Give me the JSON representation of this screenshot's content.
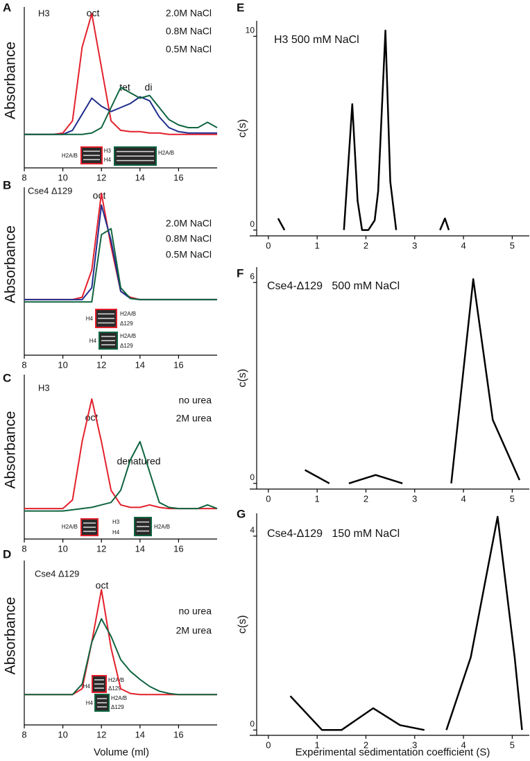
{
  "chart_data": [
    {
      "type": "line",
      "panel": "A",
      "title": "H3",
      "y_label": "Absorbance",
      "annotations": [
        "oct",
        "tet",
        "di"
      ],
      "gel_labels": [
        "H2A/B",
        "H3",
        "H4",
        "H2A/B"
      ],
      "x": [
        8,
        8.5,
        9,
        9.5,
        10,
        10.5,
        11,
        11.5,
        12,
        12.5,
        13,
        13.5,
        14,
        14.5,
        15,
        15.5,
        16,
        16.5,
        17,
        17.5,
        18
      ],
      "series": [
        {
          "name": "2.0M NaCl",
          "color": "#e3202c",
          "values": [
            5,
            5,
            5,
            5,
            6,
            15,
            70,
            95,
            55,
            15,
            8,
            7,
            7,
            6,
            6,
            5,
            5,
            5,
            5,
            5,
            5
          ]
        },
        {
          "name": "0.8M NaCl",
          "color": "#1f2d8c",
          "values": [
            5,
            5,
            5,
            5,
            5,
            8,
            20,
            32,
            26,
            22,
            25,
            28,
            33,
            30,
            18,
            10,
            7,
            6,
            6,
            6,
            6
          ]
        },
        {
          "name": "0.5M NaCl",
          "color": "#0f6440",
          "values": [
            5,
            5,
            5,
            5,
            5,
            5,
            5,
            6,
            10,
            25,
            40,
            36,
            32,
            34,
            25,
            16,
            12,
            10,
            10,
            14,
            10
          ]
        }
      ],
      "xlim": [
        8,
        18
      ],
      "xticks": [
        8,
        10,
        12,
        14,
        16
      ],
      "ylim": [
        -20,
        100
      ]
    },
    {
      "type": "line",
      "panel": "B",
      "title": "Cse4 Δ129",
      "y_label": "Absorbance",
      "annotations": [
        "oct"
      ],
      "gel_labels": [
        "H4",
        "H2A/B",
        "Δ129",
        "H4",
        "H2A/B",
        "Δ129"
      ],
      "x": [
        8,
        8.5,
        9,
        9.5,
        10,
        10.5,
        11,
        11.5,
        12,
        12.5,
        13,
        13.5,
        14,
        14.5,
        15,
        15.5,
        16,
        16.5,
        17,
        17.5,
        18
      ],
      "series": [
        {
          "name": "2.0M NaCl",
          "color": "#e3202c",
          "values": [
            5,
            5,
            5,
            5,
            5,
            5,
            7,
            30,
            95,
            50,
            12,
            7,
            5,
            5,
            5,
            5,
            5,
            5,
            5,
            5,
            5
          ]
        },
        {
          "name": "0.8M NaCl",
          "color": "#1f2d8c",
          "values": [
            5,
            5,
            5,
            5,
            5,
            5,
            5,
            15,
            85,
            55,
            12,
            6,
            5,
            5,
            5,
            5,
            5,
            5,
            5,
            5,
            5
          ]
        },
        {
          "name": "0.5M NaCl",
          "color": "#0f6440",
          "values": [
            3,
            3,
            3,
            3,
            3,
            3,
            3,
            3,
            60,
            65,
            15,
            6,
            5,
            5,
            5,
            5,
            5,
            5,
            5,
            5,
            5
          ]
        }
      ],
      "xlim": [
        8,
        18
      ],
      "xticks": [
        8,
        10,
        12,
        14,
        16
      ],
      "ylim": [
        -42,
        100
      ]
    },
    {
      "type": "line",
      "panel": "C",
      "title": "H3",
      "y_label": "Absorbance",
      "annotations": [
        "oct",
        "denatured"
      ],
      "gel_labels": [
        "H2A/B",
        "H3",
        "H4",
        "H2A/B"
      ],
      "x": [
        8,
        8.5,
        9,
        9.5,
        10,
        10.5,
        11,
        11.5,
        12,
        12.5,
        13,
        13.5,
        14,
        14.5,
        15,
        15.5,
        16,
        16.5,
        17,
        17.5,
        18
      ],
      "series": [
        {
          "name": "no urea",
          "color": "#e3202c",
          "values": [
            5,
            5,
            5,
            5,
            5,
            12,
            60,
            95,
            60,
            20,
            8,
            6,
            6,
            8,
            6,
            5,
            5,
            5,
            5,
            5,
            5
          ]
        },
        {
          "name": "2M urea",
          "color": "#0f6440",
          "values": [
            3,
            3,
            3,
            3,
            3,
            4,
            5,
            6,
            8,
            10,
            20,
            45,
            60,
            35,
            10,
            6,
            5,
            5,
            5,
            8,
            5
          ]
        }
      ],
      "xlim": [
        8,
        18
      ],
      "xticks": [
        8,
        10,
        12,
        14,
        16
      ],
      "ylim": [
        -20,
        115
      ]
    },
    {
      "type": "line",
      "panel": "D",
      "title": "Cse4 Δ129",
      "y_label": "Absorbance",
      "x_label": "Volume (ml)",
      "annotations": [
        "oct"
      ],
      "gel_labels": [
        "H4",
        "H2A/B",
        "Δ129",
        "H4",
        "H2A/B",
        "Δ129"
      ],
      "x": [
        8,
        8.5,
        9,
        9.5,
        10,
        10.5,
        11,
        11.5,
        12,
        12.5,
        13,
        13.5,
        14,
        14.5,
        15,
        15.5,
        16,
        16.5,
        17,
        17.5,
        18
      ],
      "series": [
        {
          "name": "no urea",
          "color": "#e3202c",
          "values": [
            5,
            5,
            5,
            5,
            5,
            5,
            10,
            50,
            95,
            45,
            10,
            6,
            5,
            5,
            5,
            5,
            5,
            5,
            5,
            5,
            5
          ]
        },
        {
          "name": "2M urea",
          "color": "#0f6440",
          "values": [
            5,
            5,
            5,
            5,
            5,
            5,
            14,
            50,
            70,
            55,
            35,
            25,
            18,
            12,
            8,
            6,
            5,
            5,
            5,
            5,
            5
          ]
        }
      ],
      "xlim": [
        8,
        18
      ],
      "xticks": [
        8,
        10,
        12,
        14,
        16
      ],
      "ylim": [
        -21,
        120
      ]
    },
    {
      "type": "line",
      "panel": "E",
      "title": "H3 500 mM NaCl",
      "y_label": "c(s)",
      "x": [
        0.2,
        0.33,
        0.4,
        1.55,
        1.72,
        1.83,
        1.92,
        2.05,
        2.18,
        2.25,
        2.4,
        2.5,
        2.62,
        3.0,
        3.52,
        3.62,
        3.7
      ],
      "series": [
        {
          "color": "#000000",
          "values": [
            0.6,
            0,
            null,
            0,
            6.5,
            1.5,
            0,
            0,
            0.5,
            2,
            10.3,
            2.5,
            0,
            null,
            0,
            0.6,
            0
          ]
        }
      ],
      "xlim": [
        -0.24,
        5.35
      ],
      "xticks": [
        0,
        1,
        2,
        3,
        4,
        5
      ],
      "ylim": [
        -0.3,
        10.8
      ],
      "yticks": [
        0,
        10
      ]
    },
    {
      "type": "line",
      "panel": "F",
      "title": "Cse4-Δ129   500 mM NaCl",
      "y_label": "c(s)",
      "x": [
        0.75,
        1.25,
        1.45,
        1.65,
        2.2,
        2.75,
        3.2,
        3.75,
        4.2,
        4.6,
        5.15
      ],
      "series": [
        {
          "color": "#000000",
          "values": [
            0.4,
            0,
            null,
            0,
            0.25,
            0,
            null,
            0,
            6.1,
            1.9,
            0.1
          ]
        }
      ],
      "xlim": [
        -0.24,
        5.35
      ],
      "xticks": [
        0,
        1,
        2,
        3,
        4,
        5
      ],
      "ylim": [
        -0.17,
        6.46
      ],
      "yticks": [
        0,
        6
      ]
    },
    {
      "type": "line",
      "panel": "G",
      "title": "Cse4-Δ129   150 mM NaCl",
      "y_label": "c(s)",
      "x_label": "Experimental sedimentation coefficient (S)",
      "x": [
        0.45,
        1.1,
        1.5,
        2.15,
        2.7,
        3.2,
        3.4,
        3.65,
        4.15,
        4.7,
        5.05,
        5.2
      ],
      "series": [
        {
          "color": "#000000",
          "values": [
            0.7,
            0,
            0,
            0.45,
            0.1,
            0,
            null,
            0,
            1.5,
            4.4,
            1.5,
            0
          ]
        }
      ],
      "xlim": [
        -0.24,
        5.35
      ],
      "xticks": [
        0,
        1,
        2,
        3,
        4,
        5
      ],
      "ylim": [
        -0.11,
        4.47
      ],
      "yticks": [
        0,
        4
      ]
    }
  ]
}
